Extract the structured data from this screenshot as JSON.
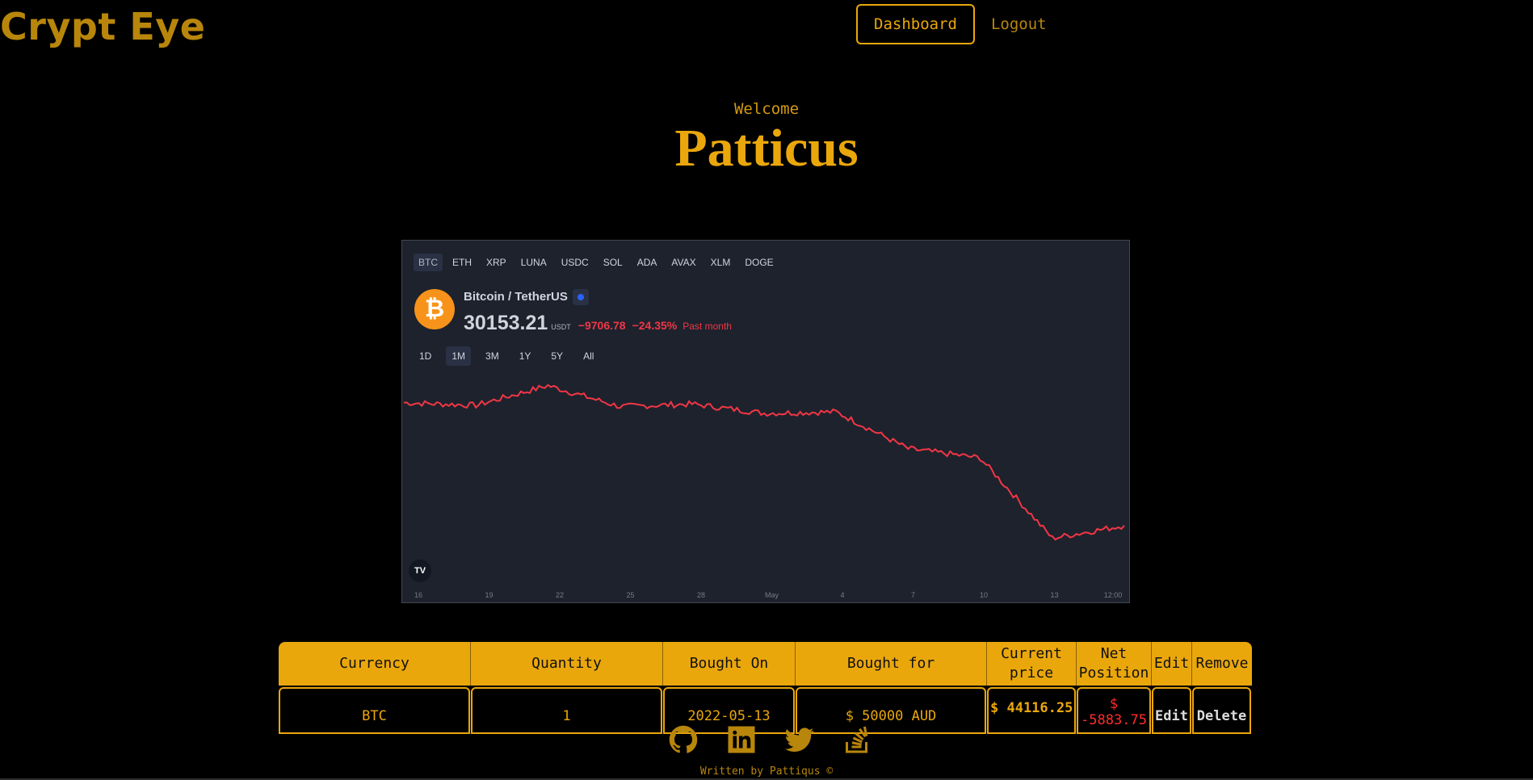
{
  "brand": "Crypt Eye",
  "nav": {
    "dashboard": "Dashboard",
    "logout": "Logout"
  },
  "welcome": {
    "label": "Welcome",
    "name": "Patticus"
  },
  "widget": {
    "symbols": [
      "BTC",
      "ETH",
      "XRP",
      "LUNA",
      "USDC",
      "SOL",
      "ADA",
      "AVAX",
      "XLM",
      "DOGE"
    ],
    "active_symbol": "BTC",
    "coin_glyph": "₿",
    "pair": "Bitcoin / TetherUS",
    "price": "30153.21",
    "unit": "USDT",
    "change": "−9706.78",
    "change_pct": "−24.35%",
    "period": "Past month",
    "ranges": [
      "1D",
      "1M",
      "3M",
      "1Y",
      "5Y",
      "All"
    ],
    "active_range": "1M",
    "logo": "TV",
    "line_color": "#f23645",
    "x_ticks": [
      "16",
      "19",
      "22",
      "25",
      "28",
      "May",
      "4",
      "7",
      "10",
      "13",
      "12:00"
    ]
  },
  "chart_data": {
    "type": "line",
    "title": "",
    "xlabel": "",
    "ylabel": "",
    "x": [
      "16",
      "19",
      "22",
      "25",
      "28",
      "May",
      "4",
      "7",
      "10",
      "13",
      "12:00"
    ],
    "series": [
      {
        "values": [
          39500,
          39300,
          40800,
          39200,
          39400,
          38700,
          38800,
          36000,
          35300,
          29200,
          30153
        ]
      }
    ]
  },
  "table": {
    "headers": [
      "Currency",
      "Quantity",
      "Bought On",
      "Bought for",
      "Current price",
      "Net Position",
      "Edit",
      "Remove"
    ],
    "rows": [
      {
        "currency": "BTC",
        "quantity": "1",
        "bought_on": "2022-05-13",
        "bought_for": "$ 50000 AUD",
        "current_price": "$ 44116.25",
        "net_symbol": "$",
        "net_value": "-5883.75",
        "edit": "Edit",
        "remove": "Delete"
      }
    ]
  },
  "footer": {
    "icons": [
      "github-icon",
      "linkedin-icon",
      "twitter-icon",
      "stackoverflow-icon"
    ],
    "text": "Written by Pattiqus ©"
  }
}
